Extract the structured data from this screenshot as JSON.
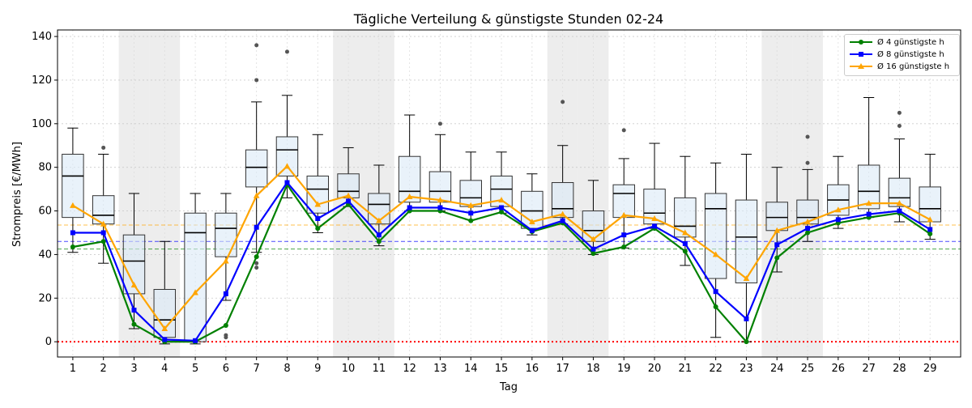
{
  "chart_data": {
    "type": "box-line",
    "title": "Tägliche Verteilung & günstigste Stunden 02-24",
    "xlabel": "Tag",
    "ylabel": "Strompreis [€/MWh]",
    "ylim": [
      -7,
      143
    ],
    "yticks": [
      0,
      20,
      40,
      60,
      80,
      100,
      120,
      140
    ],
    "grid": true,
    "legend_position": "top-right",
    "days": [
      1,
      2,
      3,
      4,
      5,
      6,
      7,
      8,
      9,
      10,
      11,
      12,
      13,
      14,
      15,
      16,
      17,
      18,
      19,
      20,
      21,
      22,
      23,
      24,
      25,
      26,
      27,
      28,
      29
    ],
    "weekend_days": [
      3,
      4,
      10,
      11,
      17,
      18,
      24,
      25
    ],
    "boxes": [
      {
        "whisker_low": 41,
        "q1": 57,
        "median": 76,
        "q3": 86,
        "whisker_high": 98,
        "outliers": []
      },
      {
        "whisker_low": 36,
        "q1": 54,
        "median": 58,
        "q3": 67,
        "whisker_high": 86,
        "outliers": [
          89
        ]
      },
      {
        "whisker_low": 6,
        "q1": 22,
        "median": 37,
        "q3": 49,
        "whisker_high": 68,
        "outliers": []
      },
      {
        "whisker_low": -1,
        "q1": 2,
        "median": 10,
        "q3": 24,
        "whisker_high": 46,
        "outliers": []
      },
      {
        "whisker_low": -1,
        "q1": 0,
        "median": 50,
        "q3": 59,
        "whisker_high": 68,
        "outliers": []
      },
      {
        "whisker_low": 19,
        "q1": 39,
        "median": 52,
        "q3": 59,
        "whisker_high": 68,
        "outliers": [
          3,
          2
        ]
      },
      {
        "whisker_low": 41,
        "q1": 71,
        "median": 80,
        "q3": 88,
        "whisker_high": 110,
        "outliers": [
          136,
          120,
          36,
          34
        ]
      },
      {
        "whisker_low": 66,
        "q1": 76,
        "median": 88,
        "q3": 94,
        "whisker_high": 113,
        "outliers": [
          133
        ]
      },
      {
        "whisker_low": 50,
        "q1": 59,
        "median": 70,
        "q3": 76,
        "whisker_high": 95,
        "outliers": []
      },
      {
        "whisker_low": 62,
        "q1": 66,
        "median": 69,
        "q3": 77,
        "whisker_high": 89,
        "outliers": []
      },
      {
        "whisker_low": 44,
        "q1": 54,
        "median": 63,
        "q3": 68,
        "whisker_high": 81,
        "outliers": []
      },
      {
        "whisker_low": 60,
        "q1": 64,
        "median": 69,
        "q3": 85,
        "whisker_high": 104,
        "outliers": []
      },
      {
        "whisker_low": 60,
        "q1": 64,
        "median": 69,
        "q3": 78,
        "whisker_high": 95,
        "outliers": [
          100
        ]
      },
      {
        "whisker_low": 56,
        "q1": 62,
        "median": 66,
        "q3": 74,
        "whisker_high": 87,
        "outliers": []
      },
      {
        "whisker_low": 59,
        "q1": 62,
        "median": 70,
        "q3": 76,
        "whisker_high": 87,
        "outliers": []
      },
      {
        "whisker_low": 49,
        "q1": 52,
        "median": 60,
        "q3": 69,
        "whisker_high": 77,
        "outliers": []
      },
      {
        "whisker_low": 54,
        "q1": 57,
        "median": 61,
        "q3": 73,
        "whisker_high": 90,
        "outliers": [
          110
        ]
      },
      {
        "whisker_low": 40,
        "q1": 46,
        "median": 51,
        "q3": 60,
        "whisker_high": 74,
        "outliers": []
      },
      {
        "whisker_low": 43,
        "q1": 57,
        "median": 68,
        "q3": 72,
        "whisker_high": 84,
        "outliers": [
          97
        ]
      },
      {
        "whisker_low": 52,
        "q1": 54,
        "median": 59,
        "q3": 70,
        "whisker_high": 91,
        "outliers": []
      },
      {
        "whisker_low": 35,
        "q1": 48,
        "median": 53,
        "q3": 66,
        "whisker_high": 85,
        "outliers": []
      },
      {
        "whisker_low": 2,
        "q1": 29,
        "median": 61,
        "q3": 68,
        "whisker_high": 82,
        "outliers": []
      },
      {
        "whisker_low": 0,
        "q1": 27,
        "median": 48,
        "q3": 65,
        "whisker_high": 86,
        "outliers": []
      },
      {
        "whisker_low": 32,
        "q1": 51,
        "median": 57,
        "q3": 64,
        "whisker_high": 80,
        "outliers": []
      },
      {
        "whisker_low": 46,
        "q1": 54,
        "median": 57,
        "q3": 65,
        "whisker_high": 79,
        "outliers": [
          94,
          82
        ]
      },
      {
        "whisker_low": 52,
        "q1": 58,
        "median": 65,
        "q3": 72,
        "whisker_high": 85,
        "outliers": []
      },
      {
        "whisker_low": 57,
        "q1": 61,
        "median": 69,
        "q3": 81,
        "whisker_high": 112,
        "outliers": []
      },
      {
        "whisker_low": 55,
        "q1": 62,
        "median": 66,
        "q3": 75,
        "whisker_high": 93,
        "outliers": [
          105,
          99
        ]
      },
      {
        "whisker_low": 47,
        "q1": 55,
        "median": 61,
        "q3": 71,
        "whisker_high": 86,
        "outliers": []
      }
    ],
    "series": [
      {
        "name": "Ø 4 günstigste h",
        "color": "#008000",
        "marker": "circle",
        "values": [
          43.5,
          46,
          8,
          0,
          0,
          7.5,
          39,
          72,
          52,
          63,
          46,
          60,
          60,
          55.5,
          59.5,
          50.5,
          54.5,
          40.5,
          43.5,
          52,
          41.5,
          16,
          0,
          38.5,
          50,
          54.5,
          57,
          59,
          49.5
        ]
      },
      {
        "name": "Ø 8 günstigste h",
        "color": "#0000ff",
        "marker": "square",
        "values": [
          50,
          50,
          14.5,
          1,
          0.5,
          22,
          52.5,
          73,
          56.5,
          64.5,
          49,
          61.5,
          61.5,
          59,
          61.5,
          51,
          55.5,
          42.5,
          49,
          53,
          45,
          23,
          10.5,
          44.5,
          52,
          56,
          58.5,
          60,
          51.5
        ]
      },
      {
        "name": "Ø 16 günstigste h",
        "color": "#ffa500",
        "marker": "triangle",
        "values": [
          62.5,
          54,
          26,
          6,
          22.5,
          37,
          67,
          80.5,
          63,
          67,
          55.5,
          66.5,
          65,
          62.5,
          65,
          55,
          58.5,
          47,
          58,
          56.5,
          50,
          40,
          29,
          51,
          55,
          60.5,
          63.5,
          63.5,
          56
        ]
      }
    ],
    "reference_lines": [
      {
        "value": 53.5,
        "color": "#ffa500",
        "style": "dashed"
      },
      {
        "value": 46,
        "color": "#0000ff",
        "style": "dashed"
      },
      {
        "value": 42.5,
        "color": "#008000",
        "style": "dashed"
      },
      {
        "value": 0,
        "color": "#ff0000",
        "style": "dotted"
      }
    ]
  }
}
